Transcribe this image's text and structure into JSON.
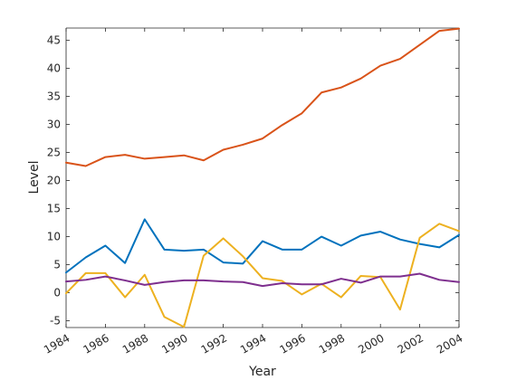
{
  "chart_data": {
    "type": "line",
    "title": "",
    "xlabel": "Year",
    "ylabel": "Level",
    "xlim": [
      1984,
      2004
    ],
    "ylim": [
      -6.2,
      47.2
    ],
    "xticks": [
      1984,
      1986,
      1988,
      1990,
      1992,
      1994,
      1996,
      1998,
      2000,
      2002,
      2004
    ],
    "yticks": [
      -5,
      0,
      5,
      10,
      15,
      20,
      25,
      30,
      35,
      40,
      45
    ],
    "grid": false,
    "legend": "none",
    "x": [
      1984,
      1985,
      1986,
      1987,
      1988,
      1989,
      1990,
      1991,
      1992,
      1993,
      1994,
      1995,
      1996,
      1997,
      1998,
      1999,
      2000,
      2001,
      2002,
      2003,
      2004
    ],
    "series": [
      {
        "color": "#0072BD",
        "values": [
          3.6,
          6.3,
          8.4,
          5.3,
          13.1,
          7.7,
          7.5,
          7.7,
          5.4,
          5.2,
          9.2,
          7.7,
          7.7,
          10.0,
          8.4,
          10.2,
          10.9,
          9.5,
          8.7,
          8.1,
          10.3
        ]
      },
      {
        "color": "#D95319",
        "values": [
          23.2,
          22.6,
          24.2,
          24.6,
          23.9,
          24.2,
          24.5,
          23.6,
          25.5,
          26.4,
          27.5,
          29.9,
          32.0,
          35.7,
          36.6,
          38.2,
          40.5,
          41.7,
          44.2,
          46.7,
          47.1
        ]
      },
      {
        "color": "#EDB120",
        "values": [
          -0.1,
          3.5,
          3.5,
          -0.8,
          3.2,
          -4.3,
          -6.1,
          6.6,
          9.7,
          6.5,
          2.6,
          2.1,
          -0.3,
          1.6,
          -0.8,
          3.0,
          2.8,
          -3.0,
          9.8,
          12.3,
          11.0
        ]
      },
      {
        "color": "#7E2F8E",
        "values": [
          2.0,
          2.3,
          2.9,
          2.2,
          1.4,
          1.9,
          2.2,
          2.2,
          2.0,
          1.9,
          1.2,
          1.7,
          1.5,
          1.5,
          2.5,
          1.8,
          2.9,
          2.9,
          3.4,
          2.3,
          1.9
        ]
      }
    ]
  }
}
